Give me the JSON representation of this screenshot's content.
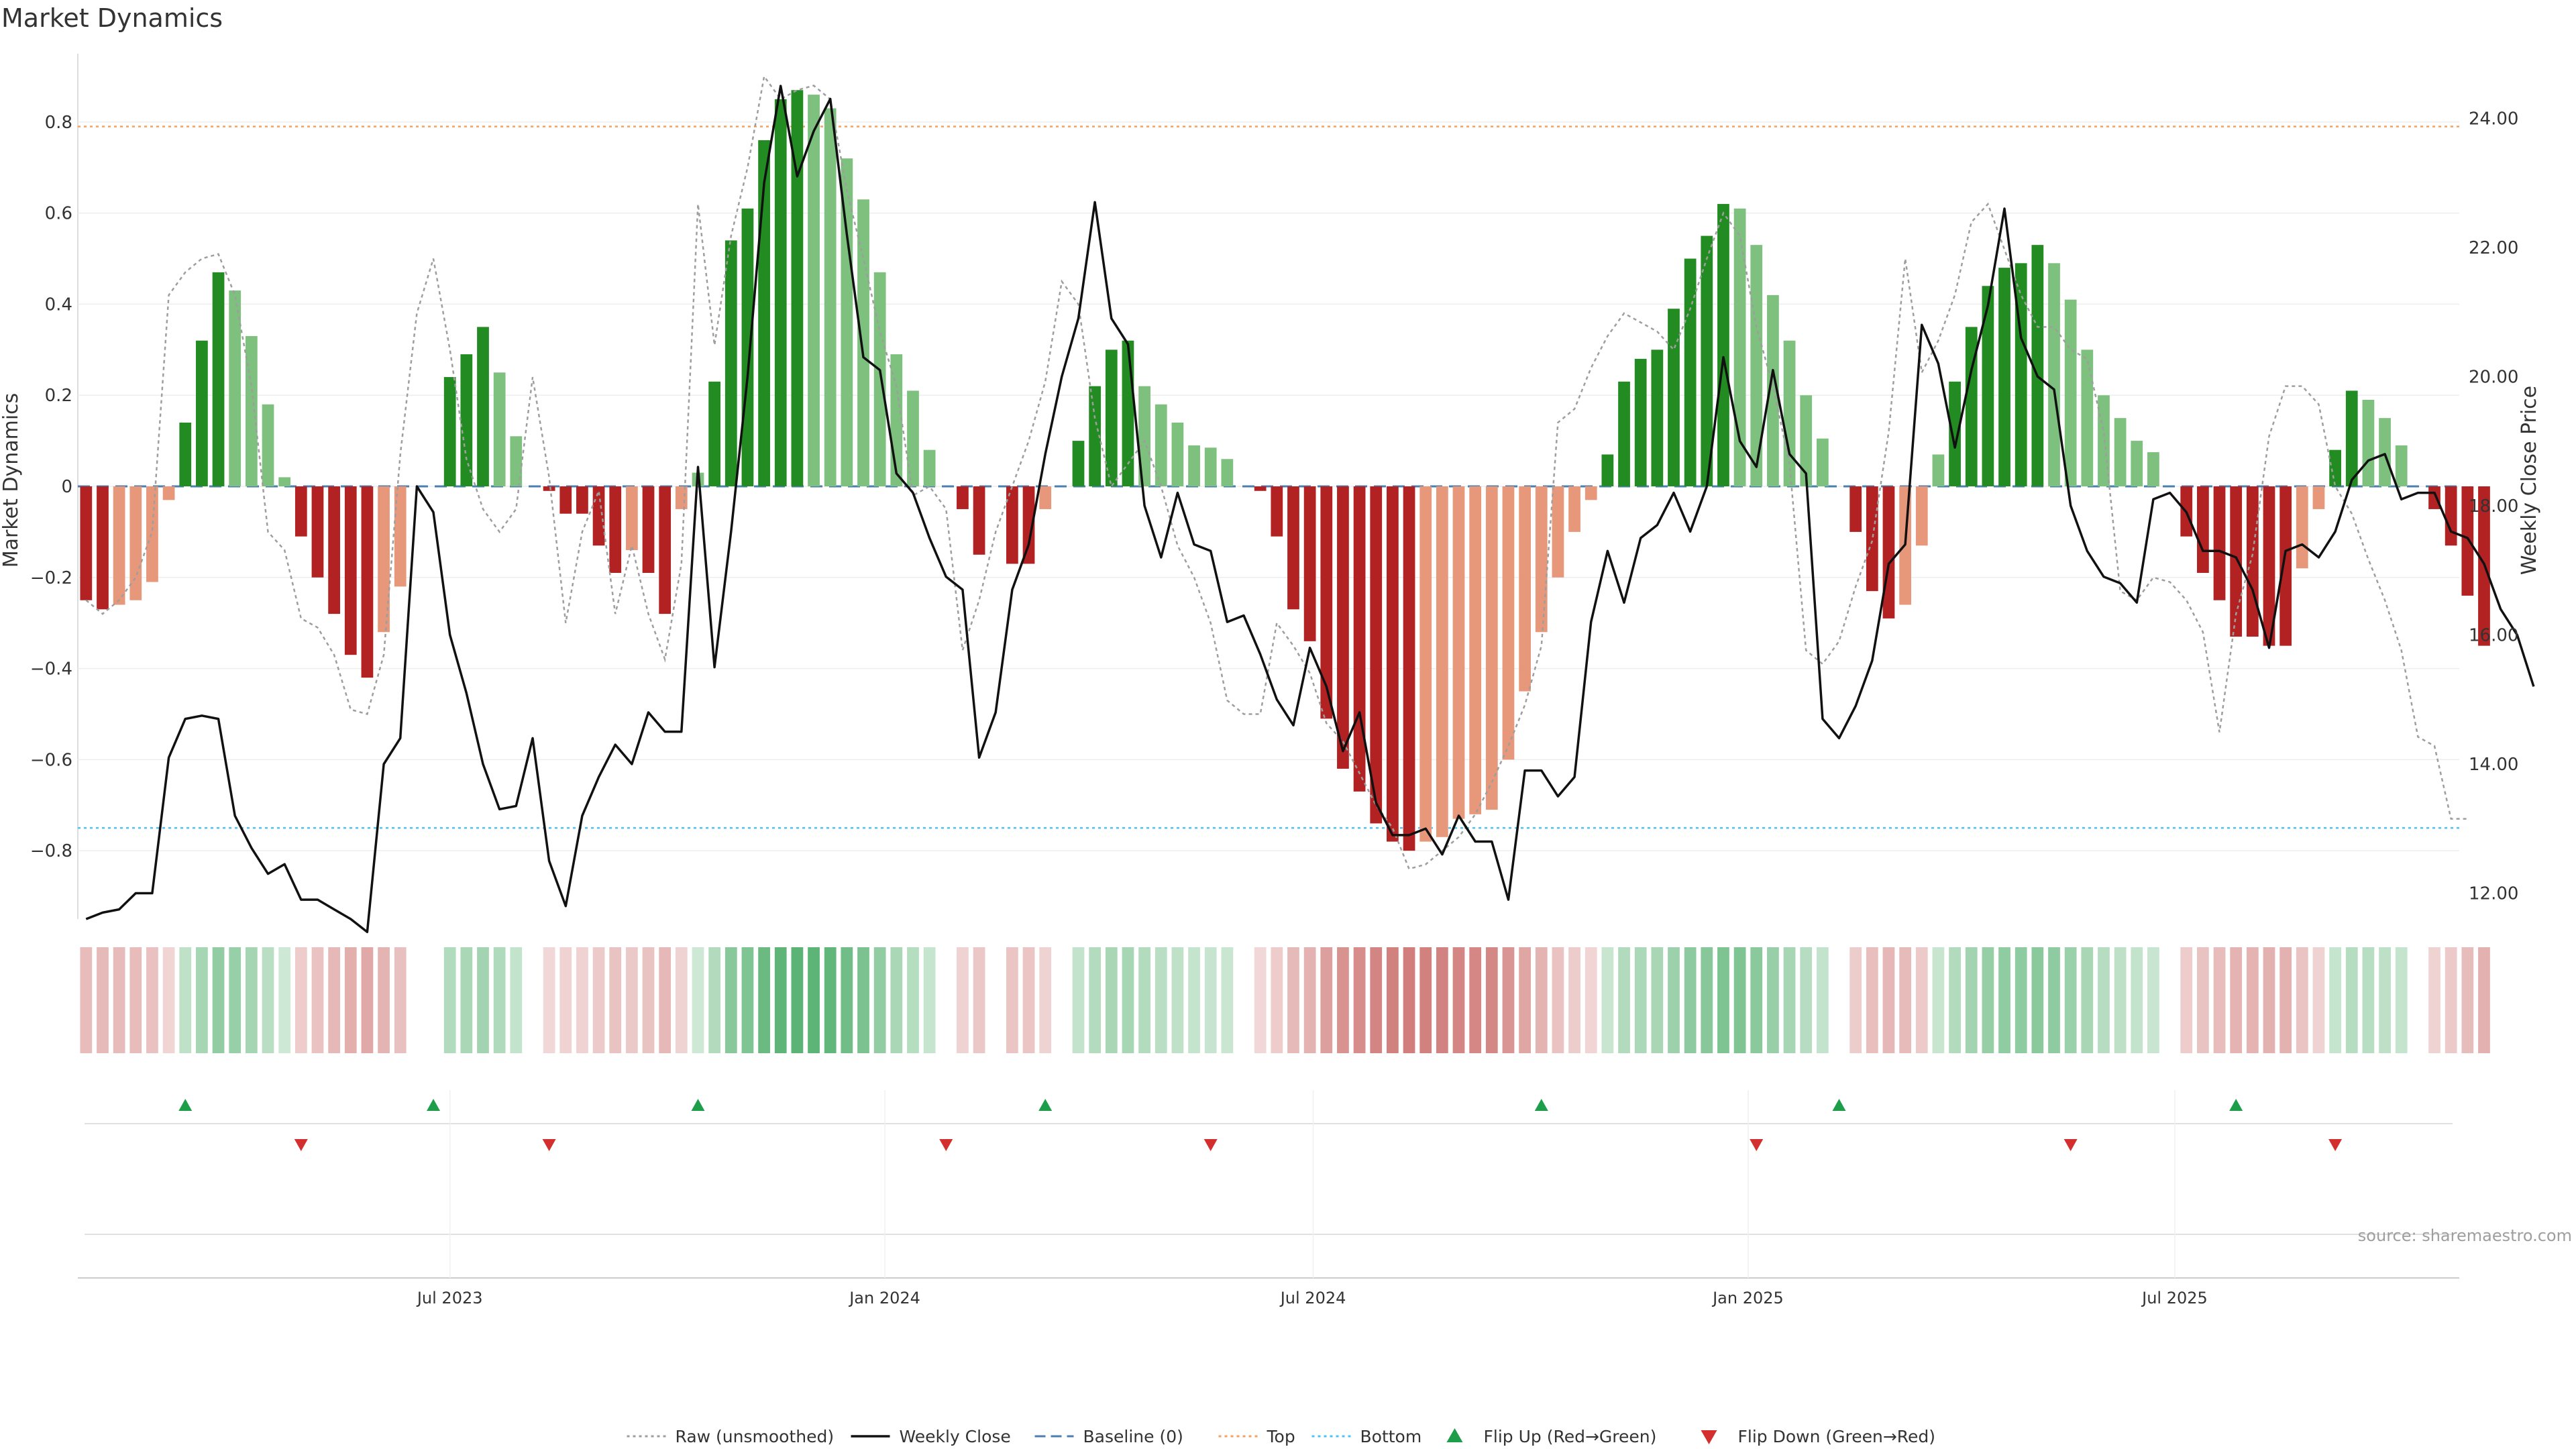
{
  "chart_data": {
    "type": "bar",
    "title": "Market Dynamics",
    "ylabel": "Market Dynamics",
    "y2label": "Weekly Close Price",
    "ylim": [
      -0.95,
      0.95
    ],
    "y2lim": [
      11.6,
      25.0
    ],
    "yticks": [
      -0.8,
      -0.6,
      -0.4,
      -0.2,
      0,
      0.2,
      0.4,
      0.6,
      0.8
    ],
    "ytick_labels": [
      "−0.8",
      "−0.6",
      "−0.4",
      "−0.2",
      "0",
      "0.2",
      "0.4",
      "0.6",
      "0.8"
    ],
    "y2ticks": [
      12,
      14,
      16,
      18,
      20,
      22,
      24
    ],
    "y2tick_labels": [
      "12.00",
      "14.00",
      "16.00",
      "18.00",
      "20.00",
      "22.00",
      "24.00"
    ],
    "x_start": "2023-01-06",
    "week_count": 144,
    "xticks": [
      {
        "label": "Jul 2023",
        "week": 22
      },
      {
        "label": "Jan 2024",
        "week": 48.3
      },
      {
        "label": "Jul 2024",
        "week": 74.2
      },
      {
        "label": "Jan 2025",
        "week": 100.5
      },
      {
        "label": "Jul 2025",
        "week": 126.3
      }
    ],
    "top_line": 0.79,
    "bottom_line": -0.75,
    "baseline": 0,
    "series": [
      {
        "name": "Market Dynamics (smoothed)",
        "values": [
          -0.25,
          -0.27,
          -0.26,
          -0.25,
          -0.21,
          -0.03,
          0.14,
          0.32,
          0.47,
          0.43,
          0.33,
          0.18,
          0.02,
          -0.11,
          -0.2,
          -0.28,
          -0.37,
          -0.42,
          -0.32,
          -0.22,
          0.0,
          0.0,
          0.24,
          0.29,
          0.35,
          0.25,
          0.11,
          0.0,
          -0.01,
          -0.06,
          -0.06,
          -0.13,
          -0.19,
          -0.14,
          -0.19,
          -0.28,
          -0.05,
          0.03,
          0.23,
          0.54,
          0.61,
          0.76,
          0.85,
          0.87,
          0.86,
          0.83,
          0.72,
          0.63,
          0.47,
          0.29,
          0.21,
          0.08,
          0.0,
          -0.05,
          -0.15,
          0.0,
          -0.17,
          -0.17,
          -0.05,
          0.0,
          0.1,
          0.22,
          0.3,
          0.32,
          0.22,
          0.18,
          0.14,
          0.09,
          0.085,
          0.06,
          0.0,
          -0.01,
          -0.11,
          -0.27,
          -0.34,
          -0.51,
          -0.62,
          -0.67,
          -0.74,
          -0.78,
          -0.8,
          -0.78,
          -0.77,
          -0.73,
          -0.72,
          -0.71,
          -0.6,
          -0.45,
          -0.32,
          -0.2,
          -0.1,
          -0.03,
          0.07,
          0.23,
          0.28,
          0.3,
          0.39,
          0.5,
          0.55,
          0.62,
          0.61,
          0.53,
          0.42,
          0.32,
          0.2,
          0.105,
          0.0,
          -0.1,
          -0.23,
          -0.29,
          -0.26,
          -0.13,
          0.07,
          0.23,
          0.35,
          0.44,
          0.48,
          0.49,
          0.53,
          0.49,
          0.41,
          0.3,
          0.2,
          0.15,
          0.1,
          0.075,
          0.0,
          -0.11,
          -0.19,
          -0.25,
          -0.33,
          -0.33,
          -0.35,
          -0.35,
          -0.18,
          -0.05,
          0.08,
          0.21,
          0.19,
          0.15,
          0.09,
          0.0,
          -0.05,
          -0.13,
          -0.24,
          -0.35
        ]
      },
      {
        "name": "Raw (unsmoothed)",
        "values": [
          -0.25,
          -0.28,
          -0.25,
          -0.2,
          -0.1,
          0.42,
          0.47,
          0.5,
          0.51,
          0.42,
          0.22,
          -0.1,
          -0.14,
          -0.29,
          -0.31,
          -0.37,
          -0.49,
          -0.5,
          -0.37,
          0.07,
          0.38,
          0.5,
          0.3,
          0.06,
          -0.05,
          -0.1,
          -0.05,
          0.24,
          0.02,
          -0.3,
          -0.1,
          -0.01,
          -0.28,
          -0.13,
          -0.28,
          -0.38,
          -0.17,
          0.62,
          0.31,
          0.55,
          0.7,
          0.9,
          0.85,
          0.87,
          0.88,
          0.85,
          0.65,
          0.5,
          0.34,
          0.22,
          -0.02,
          0.0,
          -0.05,
          -0.36,
          -0.25,
          -0.1,
          0.0,
          0.1,
          0.23,
          0.45,
          0.4,
          0.15,
          0.0,
          0.05,
          0.1,
          0.0,
          -0.13,
          -0.2,
          -0.3,
          -0.47,
          -0.5,
          -0.5,
          -0.3,
          -0.35,
          -0.41,
          -0.52,
          -0.56,
          -0.63,
          -0.7,
          -0.75,
          -0.84,
          -0.83,
          -0.8,
          -0.77,
          -0.72,
          -0.65,
          -0.57,
          -0.48,
          -0.35,
          0.14,
          0.17,
          0.26,
          0.33,
          0.38,
          0.36,
          0.34,
          0.3,
          0.39,
          0.5,
          0.6,
          0.55,
          0.35,
          0.22,
          0.05,
          -0.36,
          -0.39,
          -0.34,
          -0.22,
          -0.12,
          0.12,
          0.5,
          0.25,
          0.32,
          0.42,
          0.58,
          0.62,
          0.52,
          0.42,
          0.35,
          0.35,
          0.3,
          0.28,
          0.12,
          -0.23,
          -0.25,
          -0.2,
          -0.21,
          -0.25,
          -0.32,
          -0.54,
          -0.28,
          -0.15,
          0.11,
          0.22,
          0.22,
          0.18,
          0.0,
          -0.06,
          -0.16,
          -0.25,
          -0.36,
          -0.55,
          -0.57,
          -0.73,
          -0.73
        ]
      },
      {
        "name": "Weekly Close",
        "values": [
          11.6,
          11.7,
          11.75,
          12.0,
          12.0,
          14.1,
          14.7,
          14.75,
          14.7,
          13.2,
          12.7,
          12.3,
          12.45,
          11.9,
          11.9,
          11.75,
          11.6,
          11.4,
          14.0,
          14.4,
          18.3,
          17.9,
          16.0,
          15.1,
          14.0,
          13.3,
          13.35,
          14.4,
          12.5,
          11.8,
          13.2,
          13.8,
          14.3,
          14.0,
          14.8,
          14.5,
          14.5,
          18.6,
          15.5,
          17.6,
          20.0,
          23.0,
          24.5,
          23.1,
          23.8,
          24.3,
          22.2,
          20.3,
          20.1,
          18.5,
          18.2,
          17.5,
          16.9,
          16.7,
          14.1,
          14.8,
          16.7,
          17.4,
          18.8,
          20.0,
          20.9,
          22.7,
          20.9,
          20.5,
          18.0,
          17.2,
          18.2,
          17.4,
          17.3,
          16.2,
          16.3,
          15.7,
          15.0,
          14.6,
          15.8,
          15.2,
          14.2,
          14.8,
          13.4,
          12.9,
          12.9,
          13.0,
          12.6,
          13.2,
          12.8,
          12.8,
          11.9,
          13.9,
          13.9,
          13.5,
          13.8,
          16.2,
          17.3,
          16.5,
          17.5,
          17.7,
          18.2,
          17.6,
          18.3,
          20.3,
          19.0,
          18.6,
          20.1,
          18.8,
          18.5,
          14.7,
          14.4,
          14.9,
          15.6,
          17.1,
          17.4,
          20.8,
          20.2,
          18.9,
          20.1,
          21.1,
          22.6,
          20.6,
          20.0,
          19.8,
          18.0,
          17.3,
          16.9,
          16.8,
          16.5,
          18.1,
          18.2,
          17.9,
          17.3,
          17.3,
          17.2,
          16.7,
          15.8,
          17.3,
          17.4,
          17.2,
          17.6,
          18.4,
          18.7,
          18.8,
          18.1,
          18.2,
          18.2,
          17.6,
          17.5,
          17.1,
          16.4,
          16.0,
          15.2
        ]
      }
    ],
    "flip_up_weeks": [
      6,
      21,
      37,
      58,
      88,
      106,
      130
    ],
    "flip_down_weeks": [
      13,
      28,
      52,
      68,
      101,
      120,
      136
    ],
    "legend": [
      {
        "label": "Raw (unsmoothed)",
        "kind": "dotted",
        "color": "#9e9e9e"
      },
      {
        "label": "Weekly Close",
        "kind": "solid",
        "color": "#111111"
      },
      {
        "label": "Baseline (0)",
        "kind": "dashed",
        "color": "#4a7fb0"
      },
      {
        "label": "Top",
        "kind": "dotted",
        "color": "#f4a261"
      },
      {
        "label": "Bottom",
        "kind": "dotted",
        "color": "#4fc3f7"
      },
      {
        "label": "Flip Up (Red→Green)",
        "kind": "triangle-up",
        "color": "#1e9e4a"
      },
      {
        "label": "Flip Down (Green→Red)",
        "kind": "triangle-down",
        "color": "#d32f2f"
      }
    ],
    "source": "source: sharemaestro.com",
    "colors": {
      "green_strong": "#228b22",
      "green_light": "#7ec07e",
      "red_strong": "#b22222",
      "red_light": "#e8987a",
      "top_line": "#f4a261",
      "bottom_line": "#4fc3f7",
      "baseline": "#4a7fb0",
      "raw": "#9e9e9e",
      "close": "#111111"
    }
  }
}
